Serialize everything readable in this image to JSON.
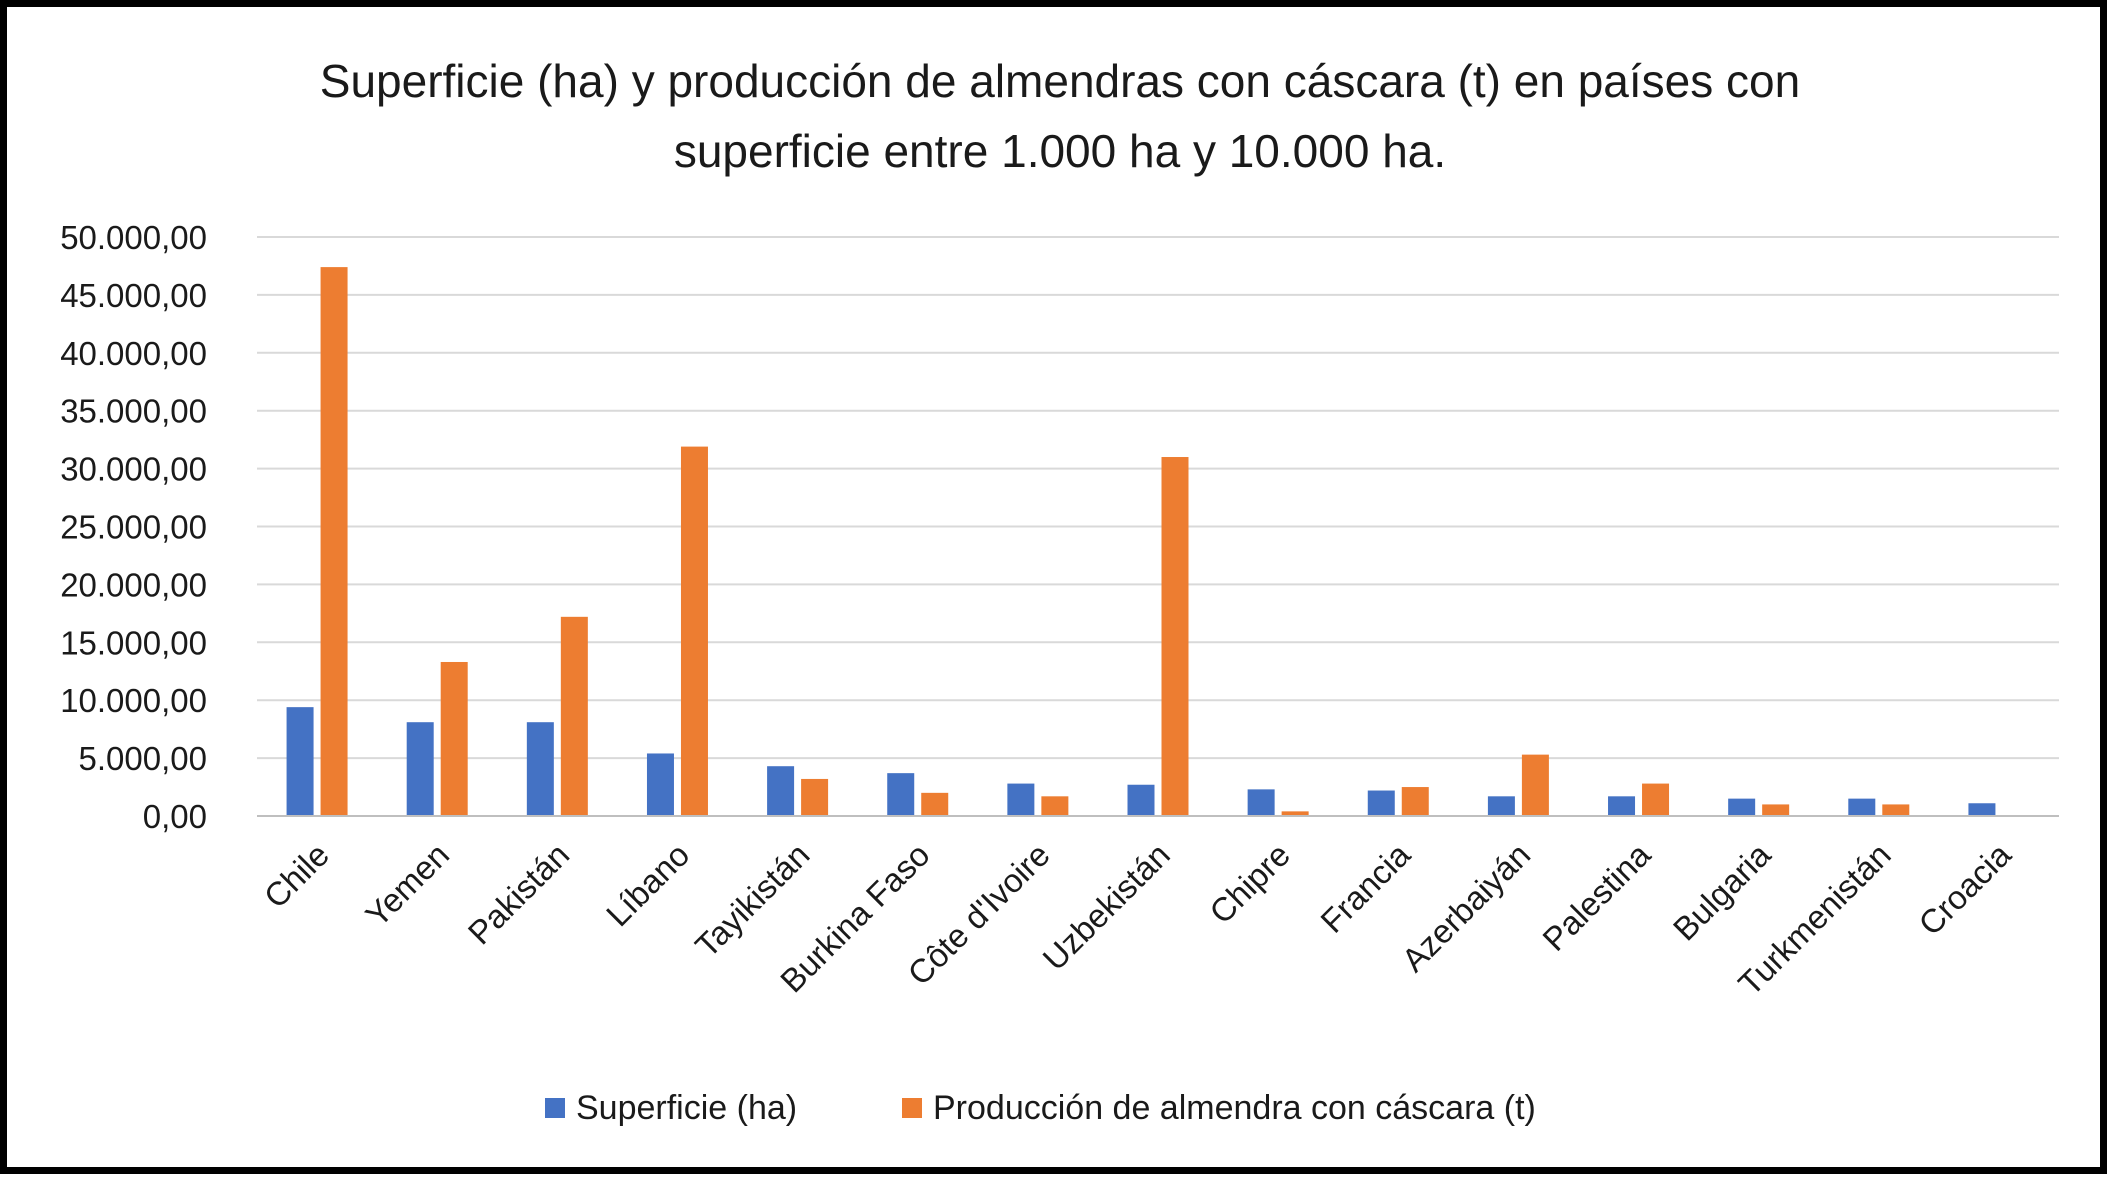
{
  "chart_data": {
    "type": "bar",
    "title": [
      "Superficie (ha) y producción de almendras con cáscara (t) en países con",
      "superficie entre 1.000 ha y 10.000 ha."
    ],
    "categories": [
      "Chile",
      "Yemen",
      "Pakistán",
      "Líbano",
      "Tayikistán",
      "Burkina Faso",
      "Côte d'Ivoire",
      "Uzbekistán",
      "Chipre",
      "Francia",
      "Azerbaiyán",
      "Palestina",
      "Bulgaria",
      "Turkmenistán",
      "Croacia"
    ],
    "series": [
      {
        "name": "Superficie (ha)",
        "color": "#4472c4",
        "values": [
          9400,
          8100,
          8100,
          5400,
          4300,
          3700,
          2800,
          2700,
          2300,
          2200,
          1700,
          1700,
          1500,
          1500,
          1100
        ]
      },
      {
        "name": "Producción de almendra con cáscara (t)",
        "color": "#ed7d31",
        "values": [
          47400,
          13300,
          17200,
          31900,
          3200,
          2000,
          1700,
          31000,
          400,
          2500,
          5300,
          2800,
          1000,
          1000,
          0
        ]
      }
    ],
    "ylim": [
      0,
      50000
    ],
    "yticks": [
      "0,00",
      "5.000,00",
      "10.000,00",
      "15.000,00",
      "20.000,00",
      "25.000,00",
      "30.000,00",
      "35.000,00",
      "40.000,00",
      "45.000,00",
      "50.000,00"
    ],
    "ytick_values": [
      0,
      5000,
      10000,
      15000,
      20000,
      25000,
      30000,
      35000,
      40000,
      45000,
      50000
    ],
    "xlabel": "",
    "ylabel": "",
    "grid": true,
    "legend": "bottom"
  }
}
